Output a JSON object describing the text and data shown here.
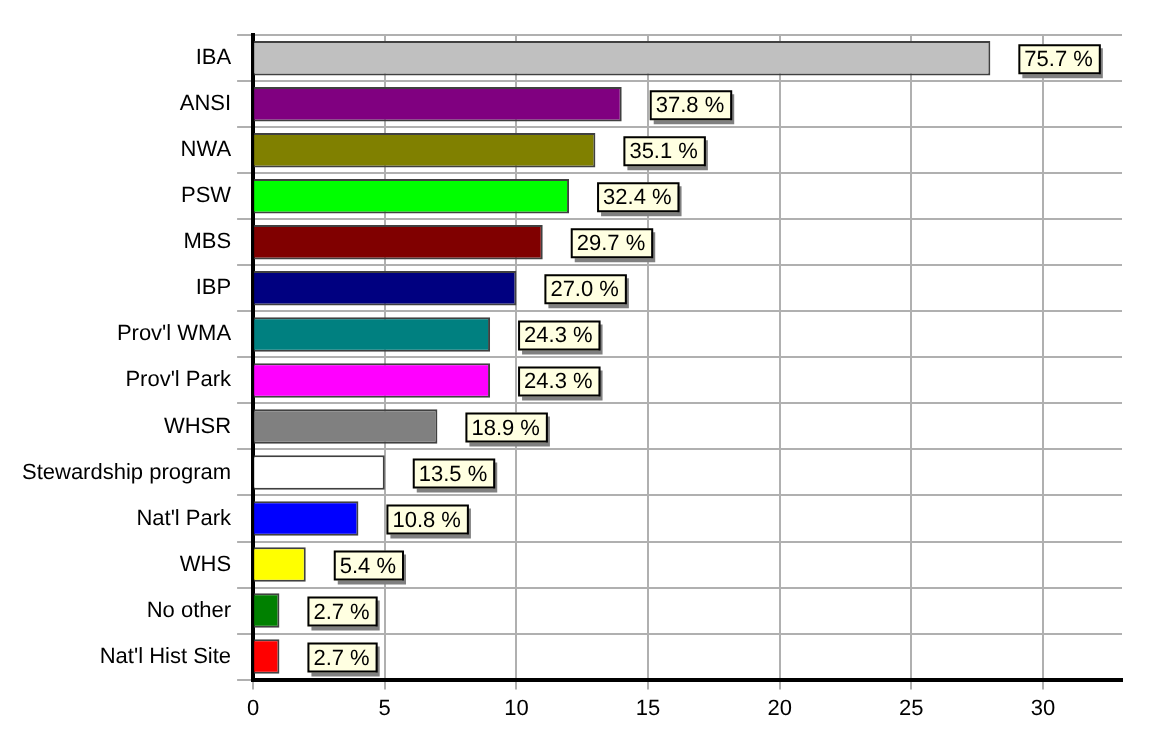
{
  "chart_data": {
    "type": "bar",
    "orientation": "horizontal",
    "categories": [
      "IBA",
      "ANSI",
      "NWA",
      "PSW",
      "MBS",
      "IBP",
      "Prov'l WMA",
      "Prov'l Park",
      "WHSR",
      "Stewardship program",
      "Nat'l Park",
      "WHS",
      "No other",
      "Nat'l Hist Site"
    ],
    "values": [
      28,
      14,
      13,
      12,
      11,
      10,
      9,
      9,
      7,
      5,
      4,
      2,
      1,
      1
    ],
    "colors": [
      "#c0c0c0",
      "#800080",
      "#808000",
      "#00ff00",
      "#800000",
      "#000080",
      "#008080",
      "#ff00ff",
      "#808080",
      "#ffffff",
      "#0000ff",
      "#ffff00",
      "#008000",
      "#ff0000"
    ],
    "annotations": [
      {
        "text": "75.7 %",
        "x": 28,
        "y": "IBA"
      },
      {
        "text": "37.8 %",
        "x": 14,
        "y": "ANSI"
      },
      {
        "text": "35.1 %",
        "x": 13,
        "y": "NWA"
      },
      {
        "text": "32.4 %",
        "x": 12,
        "y": "PSW"
      },
      {
        "text": "29.7 %",
        "x": 11,
        "y": "MBS"
      },
      {
        "text": "27.0 %",
        "x": 10,
        "y": "IBP"
      },
      {
        "text": "24.3 %",
        "x": 9,
        "y": "Prov'l WMA"
      },
      {
        "text": "24.3 %",
        "x": 9,
        "y": "Prov'l Park"
      },
      {
        "text": "18.9 %",
        "x": 7,
        "y": "WHSR"
      },
      {
        "text": "13.5 %",
        "x": 5,
        "y": "Stewardship program"
      },
      {
        "text": "10.8 %",
        "x": 4,
        "y": "Nat'l Park"
      },
      {
        "text": "5.4 %",
        "x": 2,
        "y": "WHS"
      },
      {
        "text": "2.7 %",
        "x": 1,
        "y": "No other"
      },
      {
        "text": "2.7 %",
        "x": 1,
        "y": "Nat'l Hist Site"
      }
    ],
    "xlim": [
      0,
      33
    ],
    "xticks": [
      0,
      5,
      10,
      15,
      20,
      25,
      30
    ],
    "grid": true,
    "legend": false
  }
}
